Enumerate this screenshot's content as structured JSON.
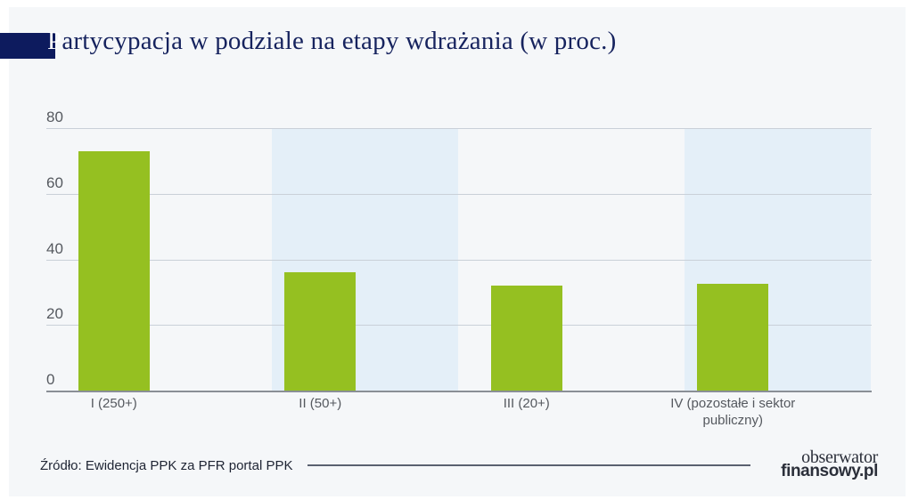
{
  "header": {
    "title_first_letter": "P",
    "title_rest": "artycypacja w podziale na etapy wdrażania (w proc.)"
  },
  "footer": {
    "source": "Źródło: Ewidencja PPK za PFR portal PPK",
    "logo_line1": "obserwator",
    "logo_line2": "finansowy.pl"
  },
  "colors": {
    "bar": "#95c021",
    "band": "#e4eff8",
    "background": "#f5f7f9",
    "title_block": "#0d1b5e"
  },
  "chart_data": {
    "type": "bar",
    "title": "Partycypacja w podziale na etapy wdrażania (w proc.)",
    "categories": [
      "I (250+)",
      "II (50+)",
      "III (20+)",
      "IV (pozostałe i sektor publiczny)"
    ],
    "category_lines": [
      [
        "I (250+)"
      ],
      [
        "II (50+)"
      ],
      [
        "III (20+)"
      ],
      [
        "IV (pozostałe i sektor",
        "publiczny)"
      ]
    ],
    "values": [
      73,
      36,
      32,
      32.5
    ],
    "xlabel": "",
    "ylabel": "",
    "ylim": [
      0,
      80
    ],
    "yticks": [
      "0",
      "20",
      "40",
      "60",
      "80"
    ],
    "grid": true,
    "legend": null,
    "source": "Źródło: Ewidencja PPK za PFR portal PPK"
  }
}
